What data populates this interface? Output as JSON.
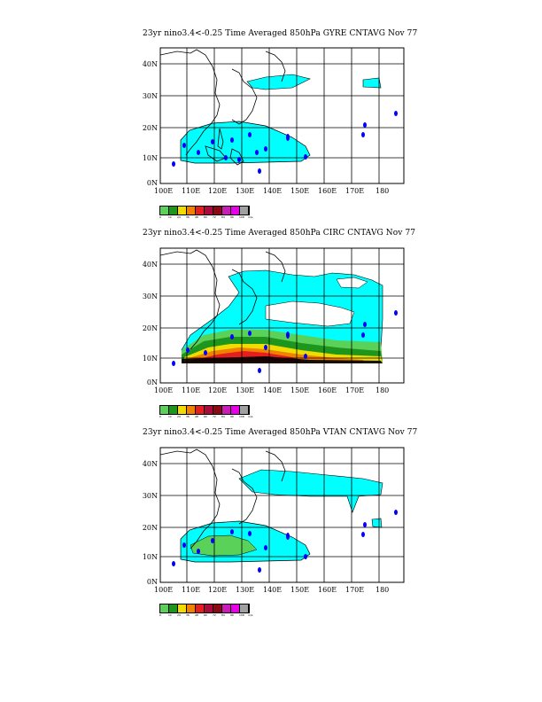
{
  "panels": [
    {
      "title": "23yr  nino3.4<-0.25 Time Averaged 850hPa GYRE CNTAVG Nov 77"
    },
    {
      "title": "23yr  nino3.4<-0.25 Time Averaged 850hPa CIRC CNTAVG Nov 77"
    },
    {
      "title": "23yr  nino3.4<-0.25 Time Averaged 850hPa VTAN CNTAVG Nov 77"
    }
  ],
  "lat_labels": [
    "40N",
    "30N",
    "20N",
    "10N",
    "0N"
  ],
  "lon_labels": [
    "100E",
    "110E",
    "120E",
    "130E",
    "140E",
    "150E",
    "160E",
    "170E",
    "180"
  ],
  "colorbar": {
    "colors": [
      "#5ad25a",
      "#1e961e",
      "#f0dc00",
      "#f08200",
      "#e61e1e",
      "#aa0a3c",
      "#8c0a14",
      "#c81eb4",
      "#e600e6",
      "#a0a0a0"
    ],
    "labels": [
      "0",
      "12",
      "24",
      "36",
      "48",
      "60",
      "72",
      "84",
      "96",
      "108",
      "m/s"
    ]
  },
  "colors": {
    "shade_low": "#00ffff",
    "storm": "#0000ff"
  }
}
